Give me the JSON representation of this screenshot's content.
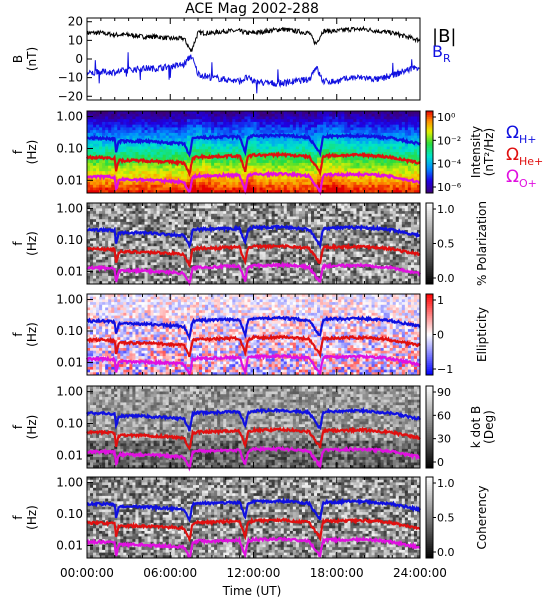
{
  "chart_data": {
    "title": "ACE Mag 2002-288",
    "xlabel": "Time (UT)",
    "x_ticks": [
      "00:00:00",
      "06:00:00",
      "12:00:00",
      "18:00:00",
      "24:00:00"
    ],
    "xlim_hours": [
      0,
      24
    ],
    "panels": [
      {
        "id": "b-field",
        "type": "line",
        "ylabel": [
          "B",
          "(nT)"
        ],
        "y_ticks": [
          "20",
          "10",
          "0",
          "−10",
          "−20"
        ],
        "y_tick_values": [
          20,
          10,
          0,
          -10,
          -20
        ],
        "ylim": [
          -22,
          22
        ],
        "legend": [
          {
            "name": "|B|",
            "sub": "",
            "color": "#000000"
          },
          {
            "name": "B",
            "sub": "R",
            "color": "#1010e0"
          }
        ],
        "series": [
          {
            "name": "|B|",
            "color": "#000000",
            "x": [
              0,
              1,
              2,
              3,
              4,
              5,
              6,
              7,
              7.5,
              8,
              9,
              10,
              11,
              11.5,
              12,
              13,
              14,
              15,
              16,
              16.5,
              17,
              18,
              19,
              20,
              21,
              22,
              23,
              24
            ],
            "y": [
              14,
              14,
              13,
              13,
              12,
              12,
              11,
              11,
              4,
              14,
              14,
              15,
              15,
              14,
              14,
              15,
              16,
              15,
              14,
              8,
              15,
              15,
              16,
              16,
              15,
              14,
              12,
              10
            ]
          },
          {
            "name": "B_R",
            "color": "#1010e0",
            "x": [
              0,
              1,
              2,
              3,
              4,
              5,
              6,
              7,
              7.5,
              8,
              9,
              10,
              11,
              11.5,
              12,
              13,
              14,
              15,
              16,
              16.5,
              17,
              18,
              19,
              20,
              21,
              22,
              23,
              24
            ],
            "y": [
              -8,
              -7,
              -7,
              -6,
              -5,
              -5,
              -4,
              -3,
              2,
              -8,
              -10,
              -11,
              -12,
              -10,
              -12,
              -13,
              -13,
              -12,
              -11,
              -4,
              -12,
              -12,
              -10,
              -10,
              -11,
              -9,
              -6,
              -4
            ]
          }
        ]
      },
      {
        "id": "power",
        "type": "heatmap",
        "ylabel": [
          "f",
          "(Hz)"
        ],
        "y_ticks": [
          "1.00",
          "0.10",
          "0.01"
        ],
        "colorbar": {
          "label": [
            "Intensity",
            "(nT²/Hz)"
          ],
          "ticks": [
            "10⁰",
            "10⁻²",
            "10⁻⁴",
            "10⁻⁶"
          ],
          "cmap": "rainbow"
        },
        "overlay_legend": [
          {
            "name": "Ω",
            "sub": "H+",
            "color": "#1010e0"
          },
          {
            "name": "Ω",
            "sub": "He+",
            "color": "#e01010"
          },
          {
            "name": "Ω",
            "sub": "O+",
            "color": "#e010e0"
          }
        ]
      },
      {
        "id": "polarization",
        "type": "heatmap",
        "ylabel": [
          "f",
          "(Hz)"
        ],
        "y_ticks": [
          "1.00",
          "0.10",
          "0.01"
        ],
        "colorbar": {
          "label": [
            "% Polarization"
          ],
          "ticks": [
            "1.0",
            "0.5",
            "0.0"
          ],
          "cmap": "gray"
        }
      },
      {
        "id": "ellipticity",
        "type": "heatmap",
        "ylabel": [
          "f",
          "(Hz)"
        ],
        "y_ticks": [
          "1.00",
          "0.10",
          "0.01"
        ],
        "colorbar": {
          "label": [
            "Ellipticity"
          ],
          "ticks": [
            "1",
            "0",
            "−1"
          ],
          "cmap": "bwr"
        }
      },
      {
        "id": "kdotb",
        "type": "heatmap",
        "ylabel": [
          "f",
          "(Hz)"
        ],
        "y_ticks": [
          "1.00",
          "0.10",
          "0.01"
        ],
        "colorbar": {
          "label": [
            "k dot B",
            "(Deg)"
          ],
          "ticks": [
            "90",
            "60",
            "30",
            "0"
          ],
          "cmap": "gray"
        }
      },
      {
        "id": "coherency",
        "type": "heatmap",
        "ylabel": [
          "f",
          "(Hz)"
        ],
        "y_ticks": [
          "1.00",
          "0.10",
          "0.01"
        ],
        "colorbar": {
          "label": [
            "Coherency"
          ],
          "ticks": [
            "1.0",
            "0.5",
            "0.0"
          ],
          "cmap": "gray"
        }
      }
    ],
    "gyrofrequency_lines": {
      "x_hours": [
        0,
        1,
        2,
        2.1,
        2.3,
        3,
        4,
        5,
        6,
        7,
        7.4,
        7.6,
        8,
        9,
        10,
        11,
        11.4,
        11.6,
        12,
        13,
        14,
        15,
        16,
        16.8,
        17,
        17.2,
        18,
        19,
        20,
        21,
        22,
        23,
        24
      ],
      "f_Hplus": [
        0.21,
        0.21,
        0.2,
        0.08,
        0.17,
        0.17,
        0.17,
        0.16,
        0.15,
        0.14,
        0.06,
        0.2,
        0.22,
        0.22,
        0.23,
        0.23,
        0.08,
        0.22,
        0.25,
        0.25,
        0.26,
        0.24,
        0.22,
        0.07,
        0.22,
        0.24,
        0.24,
        0.25,
        0.25,
        0.23,
        0.21,
        0.17,
        0.14
      ],
      "f_Heplus": [
        0.052,
        0.052,
        0.05,
        0.02,
        0.042,
        0.042,
        0.042,
        0.04,
        0.038,
        0.035,
        0.015,
        0.05,
        0.055,
        0.055,
        0.058,
        0.058,
        0.02,
        0.055,
        0.062,
        0.062,
        0.065,
        0.06,
        0.055,
        0.018,
        0.055,
        0.06,
        0.06,
        0.062,
        0.062,
        0.058,
        0.052,
        0.042,
        0.035
      ],
      "f_Oplus": [
        0.013,
        0.013,
        0.0125,
        0.005,
        0.0105,
        0.0105,
        0.0105,
        0.01,
        0.0095,
        0.0088,
        0.004,
        0.0125,
        0.0138,
        0.0138,
        0.0145,
        0.0145,
        0.005,
        0.0138,
        0.0155,
        0.0155,
        0.016,
        0.015,
        0.0138,
        0.0045,
        0.0138,
        0.015,
        0.015,
        0.0155,
        0.0155,
        0.0145,
        0.013,
        0.0105,
        0.0088
      ]
    }
  }
}
